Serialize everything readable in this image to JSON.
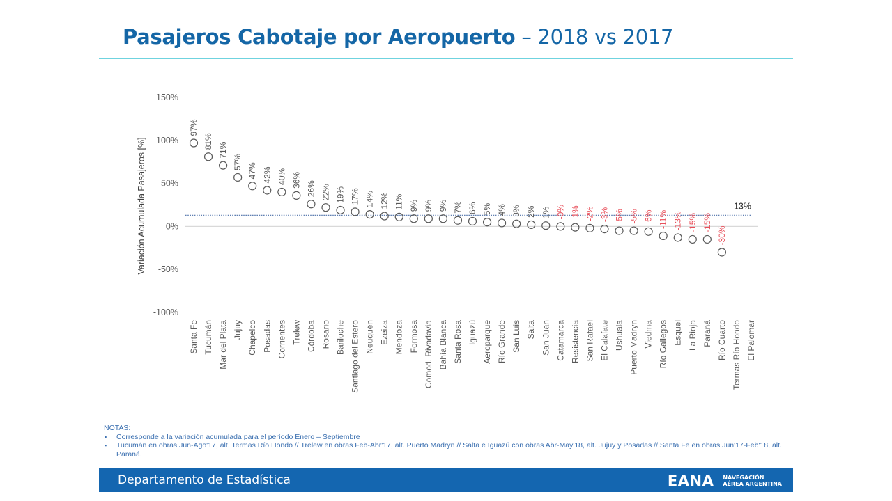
{
  "header": {
    "title_bold": "Pasajeros Cabotaje por Aeropuerto",
    "title_light": " – 2018 vs 2017"
  },
  "chart_data": {
    "type": "scatter",
    "title": "Pasajeros Cabotaje por Aeropuerto – 2018 vs 2017",
    "xlabel": "",
    "ylabel": "Variación Acumulada Pasajeros [%]",
    "ylim": [
      -100,
      150
    ],
    "yticks": [
      150,
      100,
      50,
      0,
      -50,
      -100
    ],
    "ytick_labels": [
      "150%",
      "100%",
      "50%",
      "0%",
      "-50%",
      "-100%"
    ],
    "grid": false,
    "zero_line": true,
    "reference_line": {
      "value": 13,
      "label": "13%",
      "style": "dotted"
    },
    "positive_label_color": "#595959",
    "negative_label_color": "#e8505b",
    "marker_color": "#595959",
    "reference_line_color": "#4a6fa8",
    "categories": [
      "Santa Fe",
      "Tucumán",
      "Mar del Plata",
      "Jujuy",
      "Chapelco",
      "Posadas",
      "Corrientes",
      "Trelew",
      "Córdoba",
      "Rosario",
      "Bariloche",
      "Santiago del Estero",
      "Neuquén",
      "Ezeiza",
      "Mendoza",
      "Formosa",
      "Comod. Rivadavia",
      "Bahía Blanca",
      "Santa Rosa",
      "Iguazú",
      "Aeroparque",
      "Río Grande",
      "San Luis",
      "Salta",
      "San Juan",
      "Catamarca",
      "Resistencia",
      "San Rafael",
      "El Calafate",
      "Ushuaia",
      "Puerto Madryn",
      "Viedma",
      "Río Gallegos",
      "Esquel",
      "La Rioja",
      "Paraná",
      "Río Cuarto",
      "Termas Río Hondo",
      "El Palomar"
    ],
    "values": [
      97,
      81,
      71,
      57,
      47,
      42,
      40,
      36,
      26,
      22,
      19,
      17,
      14,
      12,
      11,
      9,
      9,
      9,
      7,
      6,
      5,
      4,
      3,
      2,
      1,
      0,
      -1,
      -2,
      -3,
      -5,
      -5,
      -6,
      -11,
      -13,
      -15,
      -15,
      -30,
      null,
      null
    ],
    "data_labels": [
      "97%",
      "81%",
      "71%",
      "57%",
      "47%",
      "42%",
      "40%",
      "36%",
      "26%",
      "22%",
      "19%",
      "17%",
      "14%",
      "12%",
      "11%",
      "9%",
      "9%",
      "9%",
      "7%",
      "6%",
      "5%",
      "4%",
      "3%",
      "2%",
      "1%",
      "-0%",
      "-1%",
      "-2%",
      "-3%",
      "-5%",
      "-5%",
      "-6%",
      "-11%",
      "-13%",
      "-15%",
      "-15%",
      "-30%",
      "",
      ""
    ]
  },
  "notes": {
    "heading": "NOTAS:",
    "items": [
      "Corresponde a la variación acumulada para el período Enero – Septiembre",
      "Tucumán en obras Jun-Ago'17, alt. Termas Río Hondo // Trelew en obras Feb-Abr'17, alt. Puerto Madryn // Salta e Iguazú con obras Abr-May'18, alt. Jujuy y Posadas // Santa Fe en obras Jun'17-Feb'18, alt. Paraná."
    ],
    "bullet": "▪"
  },
  "footer": {
    "department": "Departamento de Estadística",
    "logo_main": "EANA",
    "logo_sub_line1": "NAVEGACIÓN",
    "logo_sub_line2": "AÉREA ARGENTINA"
  }
}
